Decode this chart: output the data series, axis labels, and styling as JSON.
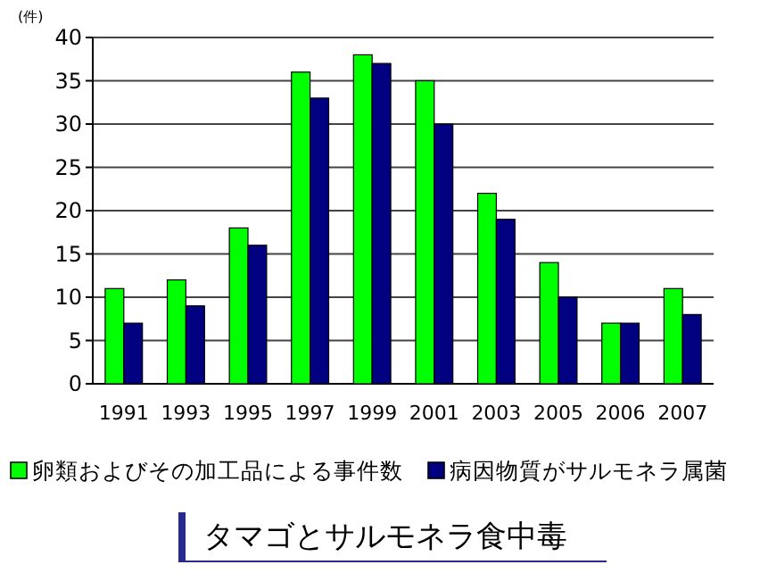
{
  "chart_data": {
    "type": "bar",
    "title": "タマゴとサルモネラ食中毒",
    "ylabel": "(件)",
    "categories": [
      "1991",
      "1993",
      "1995",
      "1997",
      "1999",
      "2001",
      "2003",
      "2005",
      "2006",
      "2007"
    ],
    "series": [
      {
        "name": "卵類およびその加工品による事件数",
        "color": "#00ff00",
        "values": [
          11,
          12,
          18,
          36,
          38,
          35,
          22,
          14,
          7,
          11
        ]
      },
      {
        "name": "病因物質がサルモネラ属菌",
        "color": "#000080",
        "values": [
          7,
          9,
          16,
          33,
          37,
          30,
          19,
          10,
          7,
          8
        ]
      }
    ],
    "ylim": [
      0,
      40
    ],
    "yticks": [
      0,
      5,
      10,
      15,
      20,
      25,
      30,
      35,
      40
    ],
    "grid": "y",
    "legend": "bottom"
  }
}
